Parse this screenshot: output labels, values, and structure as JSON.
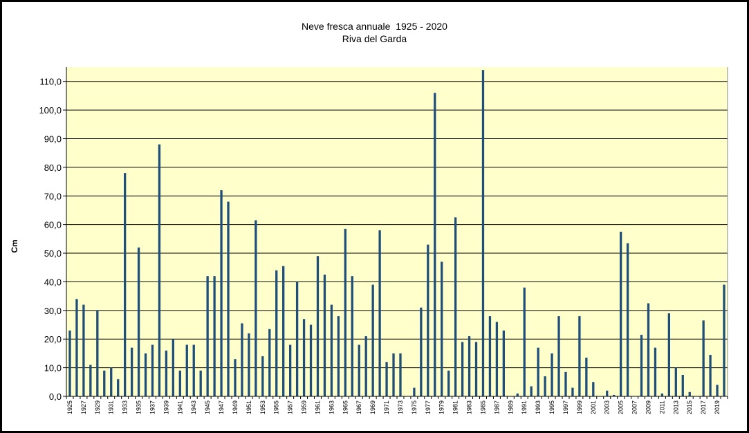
{
  "chart_data": {
    "type": "bar",
    "title": "Neve fresca annuale  1925 - 2020",
    "subtitle": "Riva del Garda",
    "xlabel": "",
    "ylabel": "Cm",
    "ylim": [
      0,
      115
    ],
    "yticks": [
      "0,0",
      "10,0",
      "20,0",
      "30,0",
      "40,0",
      "50,0",
      "60,0",
      "70,0",
      "80,0",
      "90,0",
      "100,0",
      "110,0"
    ],
    "grid": true,
    "legend": "none",
    "colors": {
      "bar": "#1F4E79",
      "plot_bg": "#FFFFCC",
      "grid": "#000000"
    },
    "categories": [
      "1925",
      "1926",
      "1927",
      "1928",
      "1929",
      "1930",
      "1931",
      "1932",
      "1933",
      "1934",
      "1935",
      "1936",
      "1937",
      "1938",
      "1939",
      "1940",
      "1941",
      "1942",
      "1943",
      "1944",
      "1945",
      "1946",
      "1947",
      "1948",
      "1949",
      "1950",
      "1951",
      "1952",
      "1953",
      "1954",
      "1955",
      "1956",
      "1957",
      "1958",
      "1959",
      "1960",
      "1961",
      "1962",
      "1963",
      "1964",
      "1965",
      "1966",
      "1967",
      "1968",
      "1969",
      "1970",
      "1971",
      "1972",
      "1973",
      "1974",
      "1975",
      "1976",
      "1977",
      "1978",
      "1979",
      "1980",
      "1981",
      "1982",
      "1983",
      "1984",
      "1985",
      "1986",
      "1987",
      "1988",
      "1989",
      "1990",
      "1991",
      "1992",
      "1993",
      "1994",
      "1995",
      "1996",
      "1997",
      "1998",
      "1999",
      "2000",
      "2001",
      "2002",
      "2003",
      "2004",
      "2005",
      "2006",
      "2007",
      "2008",
      "2009",
      "2010",
      "2011",
      "2012",
      "2013",
      "2014",
      "2015",
      "2016",
      "2017",
      "2018",
      "2019",
      "2020"
    ],
    "shown_tick_labels": [
      "1925",
      "1927",
      "1929",
      "1931",
      "1933",
      "1935",
      "1937",
      "1939",
      "1941",
      "1943",
      "1945",
      "1947",
      "1949",
      "1951",
      "1953",
      "1955",
      "1957",
      "1959",
      "1961",
      "1963",
      "1965",
      "1967",
      "1969",
      "1971",
      "1973",
      "1975",
      "1977",
      "1979",
      "1981",
      "1983",
      "1985",
      "1987",
      "1989",
      "1991",
      "1993",
      "1995",
      "1997",
      "1999",
      "2001",
      "2003",
      "2005",
      "2007",
      "2009",
      "2011",
      "2013",
      "2015",
      "2017",
      "2019"
    ],
    "values": [
      23,
      34,
      32,
      11,
      30,
      9,
      10,
      6,
      78,
      17,
      52,
      15,
      18,
      88,
      16,
      20,
      9,
      18,
      18,
      9,
      42,
      42,
      72,
      68,
      13,
      25.5,
      22,
      61.5,
      14,
      23.5,
      44,
      45.5,
      18,
      40,
      27,
      25,
      49,
      42.5,
      32,
      28,
      58.5,
      42,
      18,
      21,
      39,
      58,
      12,
      15,
      15,
      0,
      3,
      31,
      53,
      106,
      47,
      9,
      62.5,
      19,
      21,
      19,
      114,
      28,
      26,
      23,
      0,
      1,
      38,
      3.5,
      17,
      7,
      15,
      28,
      8.5,
      3,
      28,
      13.5,
      5,
      0,
      2,
      0.5,
      57.5,
      53.5,
      0,
      21.5,
      32.5,
      17,
      1,
      29,
      10,
      7.5,
      1.5,
      0,
      26.5,
      14.5,
      4,
      39
    ]
  }
}
